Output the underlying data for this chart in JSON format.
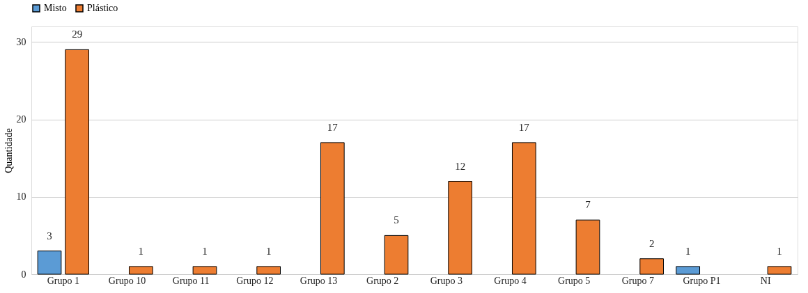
{
  "chart_data": {
    "type": "bar",
    "ylabel": "Quantidade",
    "categories": [
      "Grupo 1",
      "Grupo 10",
      "Grupo 11",
      "Grupo 12",
      "Grupo 13",
      "Grupo 2",
      "Grupo 3",
      "Grupo 4",
      "Grupo 5",
      "Grupo 7",
      "Grupo P1",
      "NI"
    ],
    "series": [
      {
        "name": "Misto",
        "color": "#5b9bd5",
        "values": [
          3,
          null,
          null,
          null,
          null,
          null,
          null,
          null,
          null,
          null,
          1,
          null
        ]
      },
      {
        "name": "Plástico",
        "color": "#ed7d31",
        "values": [
          29,
          1,
          1,
          1,
          17,
          5,
          12,
          17,
          7,
          2,
          null,
          1
        ]
      }
    ],
    "ylim": [
      0,
      32
    ],
    "yticks": [
      0,
      10,
      20,
      30
    ],
    "grid": "y",
    "legend": "top",
    "data_labels": true
  }
}
